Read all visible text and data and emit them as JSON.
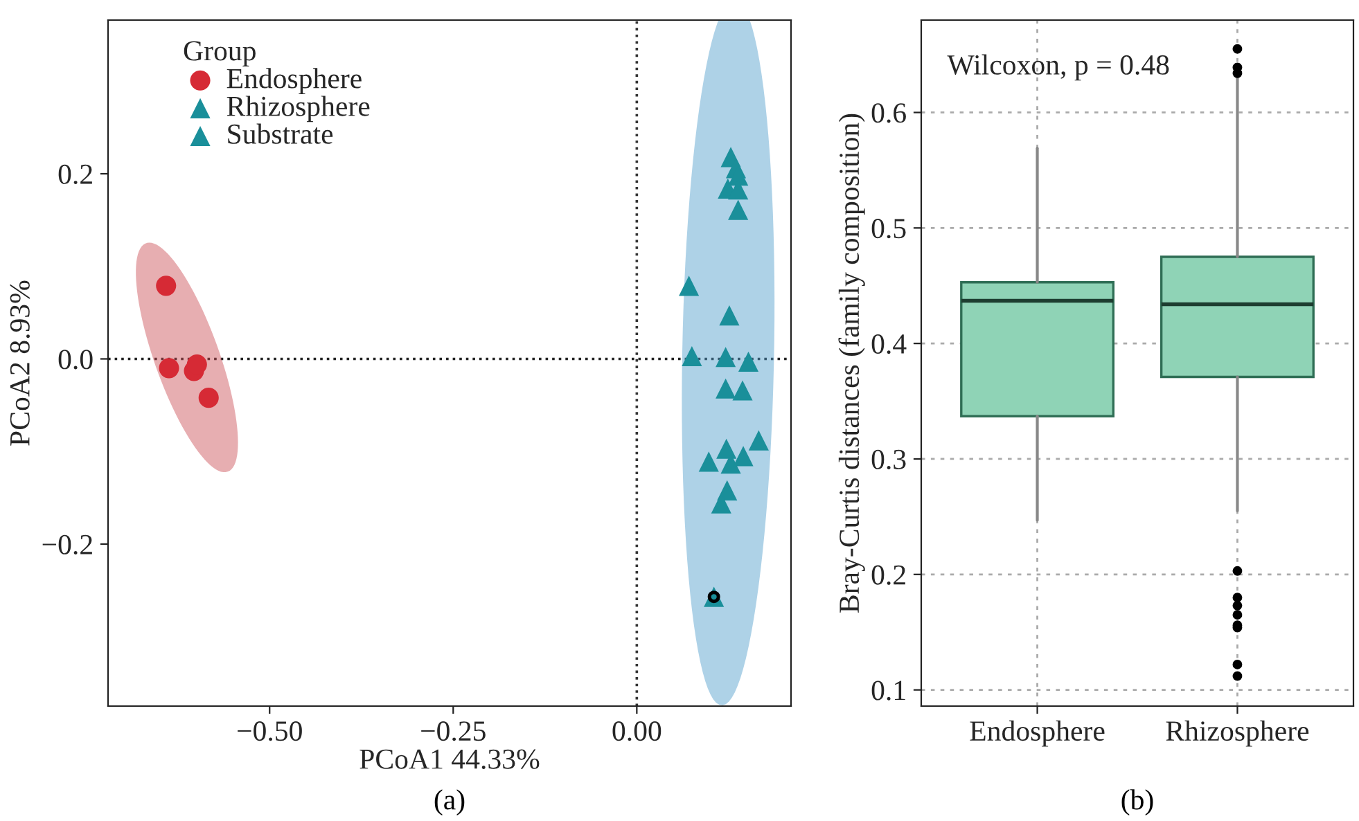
{
  "chart_data": [
    {
      "type": "scatter",
      "xlabel": "PCoA1 44.33%",
      "ylabel": "PCoA2 8.93%",
      "legend_title": "Group",
      "legend": "top left",
      "grid": false,
      "xlim": [
        -0.72,
        0.21
      ],
      "ylim": [
        -0.375,
        0.366
      ],
      "xticks": [
        {
          "value": -0.5,
          "label": "−0.50"
        },
        {
          "value": -0.25,
          "label": "−0.25"
        },
        {
          "value": 0.0,
          "label": "0.00"
        }
      ],
      "yticks": [
        {
          "value": -0.2,
          "label": "−0.2"
        },
        {
          "value": 0.0,
          "label": "0.0"
        },
        {
          "value": 0.2,
          "label": "0.2"
        }
      ],
      "ref_lines": [
        {
          "axis": "x",
          "value": 0,
          "line_style": "dotted",
          "color": "#333333"
        },
        {
          "axis": "y",
          "value": 0,
          "line_style": "dotted",
          "color": "#222222"
        }
      ],
      "annotations": [
        "(a)"
      ],
      "series": [
        {
          "name": "Endosphere",
          "color": "#d62a35",
          "marker": "circle",
          "x": [
            -0.641,
            -0.637,
            -0.603,
            -0.599,
            -0.583
          ],
          "values": [
            0.079,
            -0.01,
            -0.013,
            -0.006,
            -0.042
          ]
        },
        {
          "name": "Rhizosphere",
          "color": "#1a8f9a",
          "marker": "triangle",
          "x": [
            0.128,
            0.135,
            0.138,
            0.124,
            0.138,
            0.138,
            0.071,
            0.126,
            0.075,
            0.121,
            0.152,
            0.121,
            0.144,
            0.166,
            0.098,
            0.122,
            0.128,
            0.145,
            0.123,
            0.115
          ],
          "values": [
            0.218,
            0.206,
            0.198,
            0.184,
            0.183,
            0.161,
            0.079,
            0.047,
            0.003,
            0.002,
            -0.003,
            -0.032,
            -0.034,
            -0.088,
            -0.111,
            -0.097,
            -0.113,
            -0.105,
            -0.142,
            -0.156
          ]
        },
        {
          "name": "Substrate",
          "color": "#1a8f9a",
          "marker": "triangle",
          "x": [
            0.105
          ],
          "values": [
            -0.257
          ]
        }
      ]
    },
    {
      "type": "box",
      "ylabel": "Bray-Curtis distances (family composition)",
      "categories": [
        "Endosphere",
        "Rhizosphere"
      ],
      "grid": true,
      "ylim": [
        0.086,
        0.68
      ],
      "yticks": [
        0.1,
        0.2,
        0.3,
        0.4,
        0.5,
        0.6
      ],
      "annotations": [
        "Wilcoxon, p = 0.48",
        "(b)"
      ],
      "series": [
        {
          "color": "#8fd3b6",
          "boxes": [
            {
              "low": 0.247,
              "q1": 0.337,
              "median": 0.437,
              "q3": 0.453,
              "high": 0.569
            },
            {
              "low": 0.255,
              "q1": 0.371,
              "median": 0.434,
              "q3": 0.475,
              "high": 0.63,
              "outliers": [
                0.655,
                0.639,
                0.634,
                0.203,
                0.18,
                0.173,
                0.165,
                0.156,
                0.154,
                0.122,
                0.112
              ]
            }
          ]
        }
      ]
    }
  ]
}
